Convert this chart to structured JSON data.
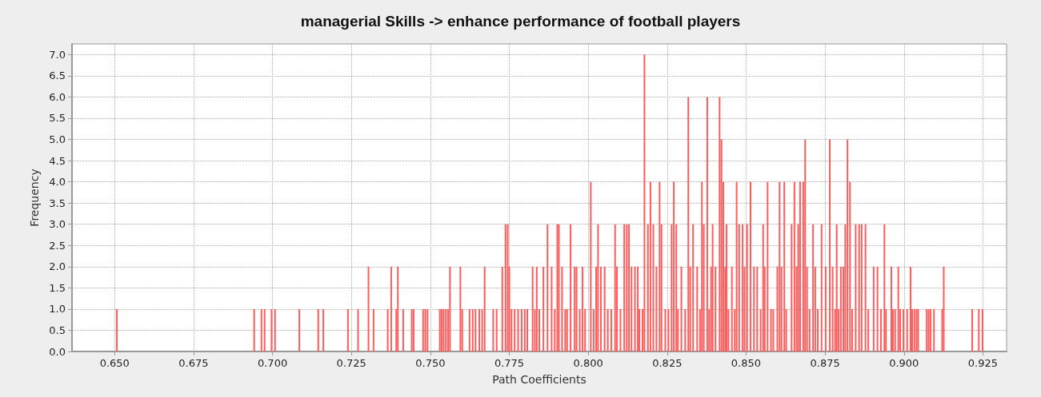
{
  "chart_data": {
    "type": "bar",
    "title": "managerial Skills -> enhance performance of football players",
    "xlabel": "Path Coefficients",
    "ylabel": "Frequency",
    "x": [
      0.6507,
      0.6942,
      0.6965,
      0.6975,
      0.6997,
      0.7008,
      0.7085,
      0.7145,
      0.7161,
      0.7239,
      0.7271,
      0.7304,
      0.732,
      0.7365,
      0.7376,
      0.7392,
      0.7397,
      0.7414,
      0.7441,
      0.7447,
      0.7477,
      0.7484,
      0.7491,
      0.753,
      0.7536,
      0.7542,
      0.7549,
      0.7556,
      0.7562,
      0.7595,
      0.7601,
      0.7624,
      0.7634,
      0.7643,
      0.7655,
      0.7664,
      0.7672,
      0.7699,
      0.771,
      0.7728,
      0.7738,
      0.7745,
      0.775,
      0.7757,
      0.7767,
      0.7778,
      0.7789,
      0.7799,
      0.7807,
      0.7824,
      0.7831,
      0.7837,
      0.7845,
      0.7858,
      0.7871,
      0.7884,
      0.7894,
      0.7902,
      0.7907,
      0.7917,
      0.7927,
      0.7933,
      0.7944,
      0.7957,
      0.7963,
      0.7973,
      0.7982,
      0.799,
      0.8008,
      0.8017,
      0.8025,
      0.8031,
      0.804,
      0.8052,
      0.8062,
      0.8073,
      0.8085,
      0.8091,
      0.8102,
      0.8114,
      0.8122,
      0.8129,
      0.8137,
      0.8148,
      0.8157,
      0.8162,
      0.8172,
      0.8178,
      0.8189,
      0.8197,
      0.8206,
      0.8216,
      0.8226,
      0.8232,
      0.8244,
      0.8254,
      0.8264,
      0.8271,
      0.8279,
      0.8284,
      0.8295,
      0.8307,
      0.8317,
      0.8323,
      0.8332,
      0.8345,
      0.8354,
      0.836,
      0.8366,
      0.8377,
      0.8383,
      0.8389,
      0.8394,
      0.8403,
      0.8416,
      0.8422,
      0.8428,
      0.8434,
      0.8438,
      0.8444,
      0.8455,
      0.8464,
      0.847,
      0.8478,
      0.8489,
      0.8495,
      0.8503,
      0.8514,
      0.8525,
      0.8535,
      0.8546,
      0.8554,
      0.8559,
      0.8568,
      0.8579,
      0.8586,
      0.8599,
      0.8606,
      0.8612,
      0.8621,
      0.8627,
      0.8644,
      0.8653,
      0.866,
      0.8665,
      0.8671,
      0.8681,
      0.8687,
      0.8693,
      0.8701,
      0.8712,
      0.8719,
      0.8727,
      0.8739,
      0.8752,
      0.8765,
      0.8774,
      0.8782,
      0.8787,
      0.8793,
      0.88,
      0.8808,
      0.8814,
      0.8821,
      0.8829,
      0.8836,
      0.8847,
      0.8858,
      0.8866,
      0.8878,
      0.8887,
      0.8904,
      0.8916,
      0.8927,
      0.8938,
      0.8943,
      0.896,
      0.8965,
      0.8972,
      0.8982,
      0.8988,
      0.8998,
      0.901,
      0.9021,
      0.9026,
      0.9033,
      0.904,
      0.9045,
      0.9072,
      0.9078,
      0.9084,
      0.9095,
      0.9121,
      0.9126,
      0.9216,
      0.9237,
      0.9249
    ],
    "values": [
      1,
      1,
      1,
      1,
      1,
      1,
      1,
      1,
      1,
      1,
      1,
      2,
      1,
      1,
      2,
      1,
      2,
      1,
      1,
      1,
      1,
      1,
      1,
      1,
      1,
      1,
      1,
      1,
      2,
      2,
      1,
      1,
      1,
      1,
      1,
      1,
      2,
      1,
      1,
      2,
      3,
      3,
      2,
      1,
      1,
      1,
      1,
      1,
      1,
      2,
      1,
      2,
      1,
      2,
      3,
      2,
      1,
      3,
      3,
      2,
      1,
      1,
      3,
      2,
      2,
      1,
      2,
      1,
      4,
      1,
      2,
      3,
      2,
      2,
      1,
      1,
      3,
      2,
      1,
      3,
      3,
      3,
      2,
      2,
      2,
      1,
      1,
      7,
      3,
      4,
      3,
      2,
      4,
      3,
      1,
      1,
      3,
      4,
      3,
      1,
      2,
      1,
      6,
      2,
      3,
      2,
      1,
      4,
      3,
      6,
      1,
      2,
      3,
      2,
      6,
      5,
      4,
      2,
      3,
      1,
      2,
      1,
      4,
      3,
      3,
      2,
      3,
      4,
      2,
      2,
      1,
      3,
      2,
      4,
      1,
      1,
      2,
      4,
      2,
      4,
      1,
      3,
      4,
      2,
      3,
      4,
      4,
      5,
      2,
      1,
      3,
      2,
      1,
      3,
      2,
      5,
      2,
      1,
      3,
      1,
      2,
      2,
      3,
      5,
      4,
      1,
      3,
      3,
      3,
      3,
      1,
      2,
      2,
      1,
      3,
      1,
      2,
      1,
      1,
      2,
      1,
      1,
      1,
      2,
      1,
      1,
      1,
      1,
      1,
      1,
      1,
      1,
      1,
      2,
      1,
      1,
      1
    ],
    "color": "#ff5c5c",
    "xlim": [
      0.6365,
      0.9325
    ],
    "xticks": [
      {
        "value": 0.65,
        "label": "0.650"
      },
      {
        "value": 0.675,
        "label": "0.675"
      },
      {
        "value": 0.7,
        "label": "0.700"
      },
      {
        "value": 0.725,
        "label": "0.725"
      },
      {
        "value": 0.75,
        "label": "0.750"
      },
      {
        "value": 0.775,
        "label": "0.775"
      },
      {
        "value": 0.8,
        "label": "0.800"
      },
      {
        "value": 0.825,
        "label": "0.825"
      },
      {
        "value": 0.85,
        "label": "0.850"
      },
      {
        "value": 0.875,
        "label": "0.875"
      },
      {
        "value": 0.9,
        "label": "0.900"
      },
      {
        "value": 0.925,
        "label": "0.925"
      }
    ],
    "ylim": [
      0,
      7.25
    ],
    "yticks": [
      {
        "value": 0,
        "label": "0.0"
      },
      {
        "value": 0.5,
        "label": "0.5"
      },
      {
        "value": 1,
        "label": "1.0"
      },
      {
        "value": 1.5,
        "label": "1.5"
      },
      {
        "value": 2,
        "label": "2.0"
      },
      {
        "value": 2.5,
        "label": "2.5"
      },
      {
        "value": 3,
        "label": "3.0"
      },
      {
        "value": 3.5,
        "label": "3.5"
      },
      {
        "value": 4,
        "label": "4.0"
      },
      {
        "value": 4.5,
        "label": "4.5"
      },
      {
        "value": 5,
        "label": "5.0"
      },
      {
        "value": 5.5,
        "label": "5.5"
      },
      {
        "value": 6,
        "label": "6.0"
      },
      {
        "value": 6.5,
        "label": "6.5"
      },
      {
        "value": 7,
        "label": "7.0"
      }
    ],
    "grid": true
  }
}
